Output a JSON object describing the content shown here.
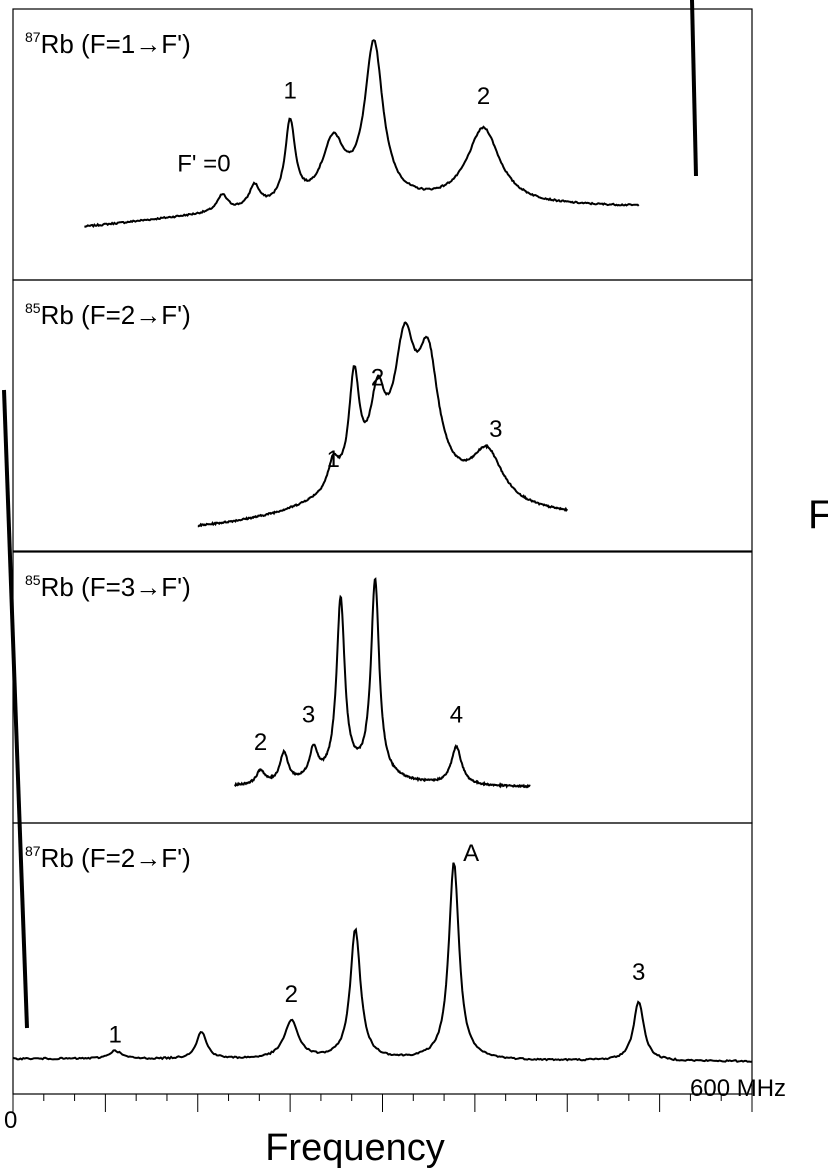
{
  "chart_data": {
    "type": "line",
    "x_axis": {
      "label": "Frequency",
      "start_label": "0",
      "end_label": "600 MHz",
      "range": [
        0,
        600
      ],
      "minor_tick_step": 25,
      "major_tick_step": 75
    },
    "y_axis": {
      "label": "",
      "range": [
        0,
        1
      ]
    },
    "edge_glyph": "F",
    "panels": [
      {
        "title_sup": "87",
        "title_main": "Rb (F=1→F')",
        "x_range": [
          58,
          508
        ],
        "baseline_start": 0.13,
        "baseline_end": 0.22,
        "baseline_peak": {
          "x": 250,
          "amp": 0.1,
          "width": 260
        },
        "peaks": [
          {
            "x": 170,
            "amp": 0.06,
            "width": 5
          },
          {
            "x": 196,
            "amp": 0.08,
            "width": 5
          },
          {
            "x": 225,
            "amp": 0.3,
            "width": 5
          },
          {
            "x": 260,
            "amp": 0.22,
            "width": 11
          },
          {
            "x": 293,
            "amp": 0.58,
            "width": 9
          },
          {
            "x": 382,
            "amp": 0.28,
            "width": 16
          }
        ],
        "labels": [
          {
            "text": "F' =0",
            "x": 155,
            "y": 0.4
          },
          {
            "text": "1",
            "x": 225,
            "y": 0.67
          },
          {
            "text": "2",
            "x": 382,
            "y": 0.65
          }
        ]
      },
      {
        "title_sup": "85",
        "title_main": "Rb (F=2→F')",
        "x_range": [
          150,
          450
        ],
        "baseline_start": 0.06,
        "baseline_end": 0.1,
        "baseline_peak": {
          "x": 310,
          "amp": 0.18,
          "width": 70
        },
        "peaks": [
          {
            "x": 260,
            "amp": 0.1,
            "width": 5
          },
          {
            "x": 277,
            "amp": 0.38,
            "width": 5
          },
          {
            "x": 296,
            "amp": 0.26,
            "width": 7
          },
          {
            "x": 318,
            "amp": 0.45,
            "width": 10
          },
          {
            "x": 337,
            "amp": 0.42,
            "width": 10
          },
          {
            "x": 385,
            "amp": 0.18,
            "width": 15
          }
        ],
        "labels": [
          {
            "text": "1",
            "x": 260,
            "y": 0.31
          },
          {
            "text": "2",
            "x": 296,
            "y": 0.61
          },
          {
            "text": "3",
            "x": 392,
            "y": 0.42
          }
        ]
      },
      {
        "title_sup": "85",
        "title_main": "Rb (F=3→F')",
        "x_range": [
          180,
          420
        ],
        "baseline_start": 0.13,
        "baseline_end": 0.13,
        "baseline_peak": {
          "x": 280,
          "amp": 0.04,
          "width": 40
        },
        "peaks": [
          {
            "x": 201,
            "amp": 0.05,
            "width": 4
          },
          {
            "x": 220,
            "amp": 0.11,
            "width": 4
          },
          {
            "x": 244,
            "amp": 0.11,
            "width": 4
          },
          {
            "x": 266,
            "amp": 0.65,
            "width": 4
          },
          {
            "x": 294,
            "amp": 0.72,
            "width": 4
          },
          {
            "x": 360,
            "amp": 0.14,
            "width": 5
          }
        ],
        "labels": [
          {
            "text": "2",
            "x": 201,
            "y": 0.27
          },
          {
            "text": "3",
            "x": 240,
            "y": 0.37
          },
          {
            "text": "4",
            "x": 360,
            "y": 0.37
          }
        ]
      },
      {
        "title_sup": "87",
        "title_main": "Rb (F=2→F')",
        "x_range": [
          0,
          600
        ],
        "baseline_start": 0.13,
        "baseline_end": 0.12,
        "baseline_peak": {
          "x": 300,
          "amp": 0.0,
          "width": 100
        },
        "peaks": [
          {
            "x": 83,
            "amp": 0.03,
            "width": 6
          },
          {
            "x": 153,
            "amp": 0.1,
            "width": 5
          },
          {
            "x": 226,
            "amp": 0.14,
            "width": 7
          },
          {
            "x": 278,
            "amp": 0.48,
            "width": 5
          },
          {
            "x": 358,
            "amp": 0.73,
            "width": 5
          },
          {
            "x": 508,
            "amp": 0.22,
            "width": 5
          }
        ],
        "labels": [
          {
            "text": "1",
            "x": 83,
            "y": 0.19
          },
          {
            "text": "2",
            "x": 226,
            "y": 0.34
          },
          {
            "text": "A",
            "x": 372,
            "y": 0.86
          },
          {
            "text": "3",
            "x": 508,
            "y": 0.42
          }
        ]
      }
    ]
  }
}
